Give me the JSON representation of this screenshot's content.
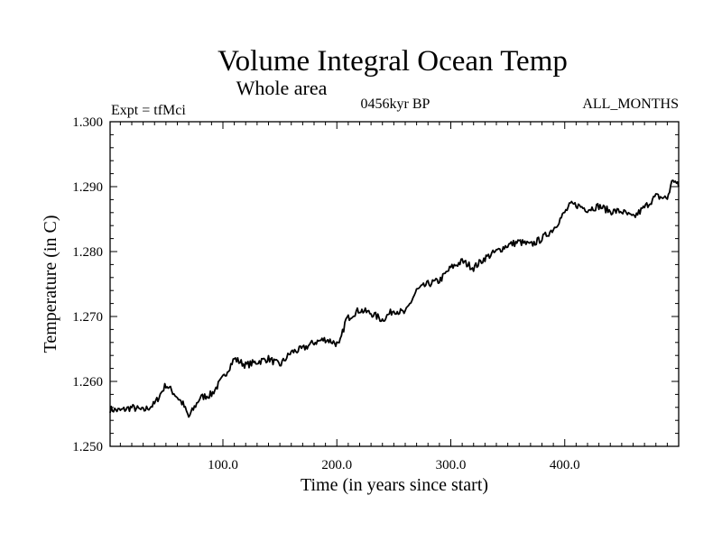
{
  "chart_data": {
    "type": "line",
    "title": "Volume Integral Ocean Temp",
    "subtitle": "Whole area",
    "annotations": {
      "left": "Expt = tfMci",
      "center": "0456kyr BP",
      "right": "ALL_MONTHS"
    },
    "xlabel": "Time (in years since start)",
    "ylabel": "Temperature (in C)",
    "xlim": [
      1,
      500
    ],
    "ylim": [
      1.25,
      1.3
    ],
    "x_ticks": [
      100,
      200,
      300,
      400
    ],
    "x_tick_labels": [
      "100.0",
      "200.0",
      "300.0",
      "400.0"
    ],
    "y_ticks": [
      1.25,
      1.26,
      1.27,
      1.28,
      1.29,
      1.3
    ],
    "y_tick_labels": [
      "1.250",
      "1.260",
      "1.270",
      "1.280",
      "1.290",
      "1.300"
    ],
    "grid": false,
    "series": [
      {
        "x": [
          1,
          10,
          20,
          30,
          40,
          50,
          58,
          65,
          70,
          75,
          80,
          90,
          100,
          110,
          120,
          130,
          140,
          150,
          160,
          170,
          180,
          190,
          198,
          202,
          208,
          215,
          220,
          230,
          240,
          250,
          260,
          270,
          280,
          290,
          300,
          310,
          320,
          330,
          340,
          350,
          360,
          370,
          380,
          390,
          400,
          405,
          410,
          420,
          430,
          440,
          450,
          460,
          470,
          480,
          490,
          495,
          500
        ],
        "values": [
          1.2557,
          1.2555,
          1.256,
          1.2555,
          1.2565,
          1.2595,
          1.258,
          1.2565,
          1.2545,
          1.256,
          1.2575,
          1.258,
          1.2605,
          1.2635,
          1.2625,
          1.263,
          1.2635,
          1.2625,
          1.2645,
          1.265,
          1.266,
          1.2665,
          1.266,
          1.2655,
          1.2695,
          1.2705,
          1.271,
          1.2705,
          1.2695,
          1.271,
          1.2705,
          1.274,
          1.275,
          1.2755,
          1.2775,
          1.2785,
          1.2775,
          1.279,
          1.28,
          1.281,
          1.2815,
          1.281,
          1.282,
          1.2835,
          1.286,
          1.2872,
          1.2872,
          1.2865,
          1.287,
          1.2862,
          1.2862,
          1.2852,
          1.2868,
          1.2885,
          1.2882,
          1.2912,
          1.29
        ]
      }
    ]
  }
}
